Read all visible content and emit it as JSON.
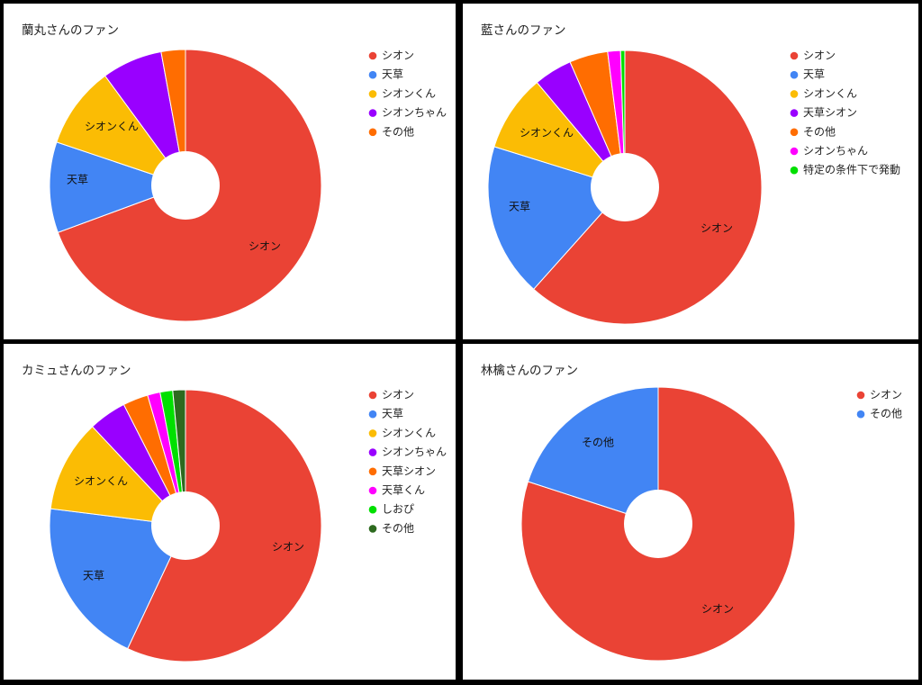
{
  "colors": {
    "red": "#ea4335",
    "blue": "#4285f4",
    "yellow": "#fbbc04",
    "purple": "#9900ff",
    "orange": "#ff6d01",
    "magenta": "#ff00ff",
    "green": "#00e000",
    "darkgreen": "#2d6a1f"
  },
  "chart_data": [
    {
      "type": "pie",
      "title": "蘭丸さんのファン",
      "legend_position": "right",
      "slices": [
        {
          "label": "シオン",
          "value": 67.5,
          "color": "#ea4335",
          "show_label": true
        },
        {
          "label": "天草",
          "value": 10.5,
          "color": "#4285f4",
          "show_label": true
        },
        {
          "label": "シオンくん",
          "value": 9.5,
          "color": "#fbbc04",
          "show_label": true
        },
        {
          "label": "シオンちゃん",
          "value": 7.0,
          "color": "#9900ff",
          "show_label": false
        },
        {
          "label": "その他",
          "value": 2.8,
          "color": "#ff6d01",
          "show_label": false
        }
      ]
    },
    {
      "type": "pie",
      "title": "藍さんのファン",
      "legend_position": "right",
      "slices": [
        {
          "label": "シオン",
          "value": 61,
          "color": "#ea4335",
          "show_label": true
        },
        {
          "label": "天草",
          "value": 18,
          "color": "#4285f4",
          "show_label": true
        },
        {
          "label": "シオンくん",
          "value": 9,
          "color": "#fbbc04",
          "show_label": true
        },
        {
          "label": "天草シオン",
          "value": 4.5,
          "color": "#9900ff",
          "show_label": false
        },
        {
          "label": "その他",
          "value": 4.5,
          "color": "#ff6d01",
          "show_label": false
        },
        {
          "label": "シオンちゃん",
          "value": 1.5,
          "color": "#ff00ff",
          "show_label": false
        },
        {
          "label": "特定の条件下で発動",
          "value": 0.5,
          "color": "#00e000",
          "show_label": false
        }
      ]
    },
    {
      "type": "pie",
      "title": "カミュさんのファン",
      "legend_position": "right",
      "slices": [
        {
          "label": "シオン",
          "value": 57,
          "color": "#ea4335",
          "show_label": true
        },
        {
          "label": "天草",
          "value": 20,
          "color": "#4285f4",
          "show_label": true
        },
        {
          "label": "シオンくん",
          "value": 11,
          "color": "#fbbc04",
          "show_label": true
        },
        {
          "label": "シオンちゃん",
          "value": 4.5,
          "color": "#9900ff",
          "show_label": false
        },
        {
          "label": "天草シオン",
          "value": 3,
          "color": "#ff6d01",
          "show_label": false
        },
        {
          "label": "天草くん",
          "value": 1.5,
          "color": "#ff00ff",
          "show_label": false
        },
        {
          "label": "しおぴ",
          "value": 1.5,
          "color": "#00e000",
          "show_label": false
        },
        {
          "label": "その他",
          "value": 1.5,
          "color": "#2d6a1f",
          "show_label": false
        }
      ]
    },
    {
      "type": "pie",
      "title": "林檎さんのファン",
      "legend_position": "right",
      "slices": [
        {
          "label": "シオン",
          "value": 80,
          "color": "#ea4335",
          "show_label": true
        },
        {
          "label": "その他",
          "value": 20,
          "color": "#4285f4",
          "show_label": true
        }
      ]
    }
  ]
}
